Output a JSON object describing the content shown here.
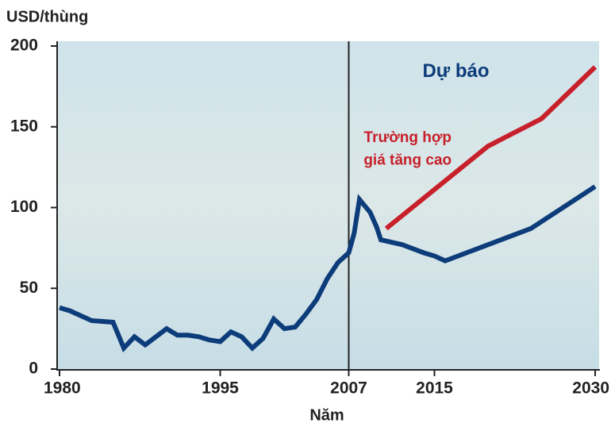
{
  "chart_data": {
    "type": "line",
    "y_label": "USD/thùng",
    "x_label": "Năm",
    "xlim": [
      1980,
      2030
    ],
    "xticks": [
      1980,
      1995,
      2007,
      2015,
      2030
    ],
    "ylim": [
      0,
      200
    ],
    "yticks": [
      0,
      50,
      100,
      150,
      200
    ],
    "annotations": [
      {
        "text": "Dự báo",
        "x": 2017,
        "y": 184,
        "color": "#0d3c7a"
      },
      {
        "text": "Trường hợp",
        "x": 2012.5,
        "y": 143,
        "color": "#c8202a"
      },
      {
        "text": "giá tăng cao",
        "x": 2012.5,
        "y": 129,
        "color": "#c8202a"
      }
    ],
    "series": [
      {
        "color": "#0d3c7a",
        "x": [
          1980,
          1981,
          1982,
          1983,
          1985,
          1986,
          1987,
          1988,
          1989,
          1990,
          1991,
          1992,
          1993,
          1994,
          1995,
          1996,
          1997,
          1998,
          1999,
          2000,
          2001,
          2002,
          2003,
          2004,
          2005,
          2006,
          2007,
          2007.5,
          2008,
          2009,
          2009.6,
          2010,
          2012,
          2014,
          2015,
          2016,
          2020,
          2024,
          2030
        ],
        "values": [
          38,
          36,
          33,
          30,
          29,
          13,
          20,
          15,
          20,
          25,
          21,
          21,
          20,
          18,
          17,
          23,
          20,
          13,
          19,
          31,
          25,
          26,
          34,
          43,
          56,
          66,
          72,
          84,
          105,
          97,
          88,
          80,
          77,
          72,
          70,
          67,
          77,
          87,
          113
        ]
      },
      {
        "color": "#c8202a",
        "x": [
          2010.5,
          2020,
          2025,
          2030
        ],
        "values": [
          87,
          138,
          155,
          187
        ]
      }
    ]
  }
}
